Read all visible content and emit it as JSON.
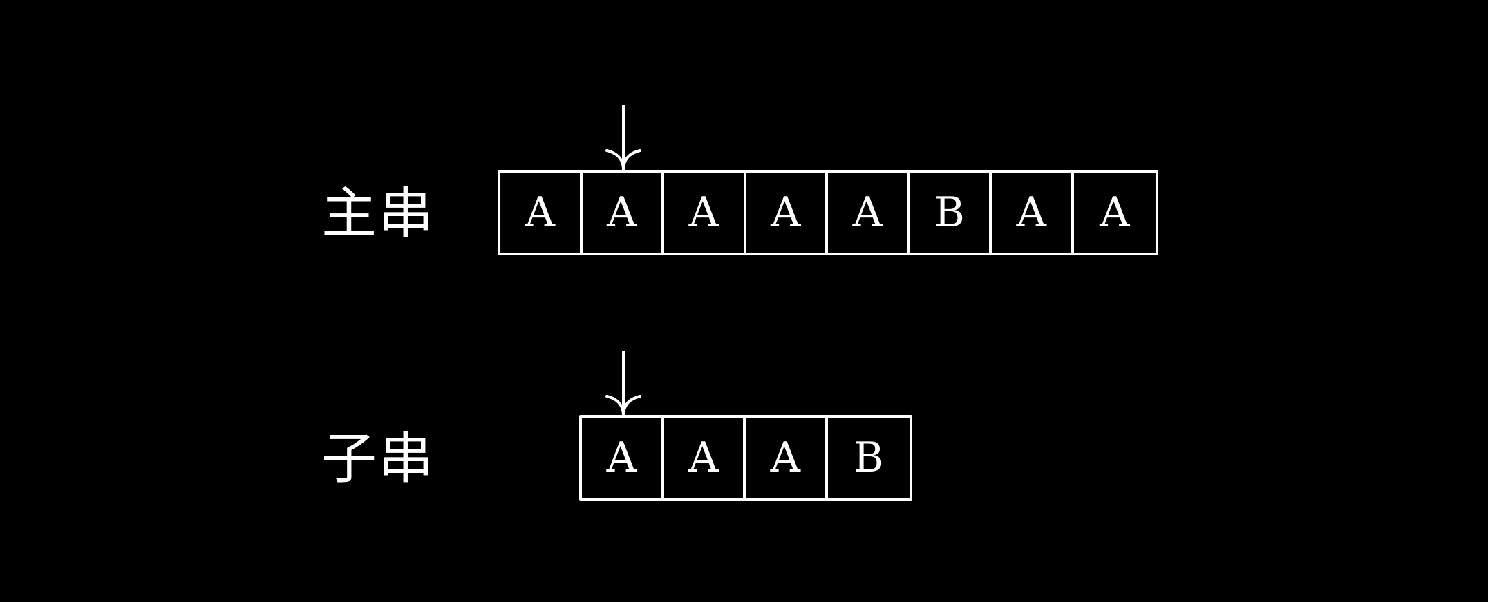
{
  "main_string": {
    "label": "主串",
    "chars": [
      "A",
      "A",
      "A",
      "A",
      "A",
      "B",
      "A",
      "A"
    ],
    "pointer_index": 1
  },
  "sub_string": {
    "label": "子串",
    "chars": [
      "A",
      "A",
      "A",
      "B"
    ],
    "pointer_index": 0
  }
}
